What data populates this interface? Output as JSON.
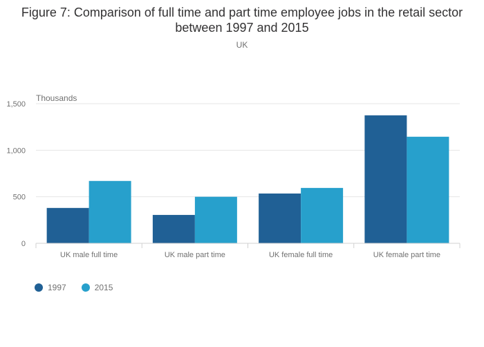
{
  "chart_data": {
    "type": "bar",
    "title": "Figure 7: Comparison of full time and part time employee jobs in the retail sector between 1997 and 2015",
    "subtitle": "UK",
    "ylabel": "Thousands",
    "xlabel": "",
    "categories": [
      "UK male full time",
      "UK male part time",
      "UK female full time",
      "UK female part time"
    ],
    "series": [
      {
        "name": "1997",
        "color": "#206095",
        "values": [
          380,
          305,
          535,
          1375
        ]
      },
      {
        "name": "2015",
        "color": "#27a0cc",
        "values": [
          670,
          500,
          595,
          1145
        ]
      }
    ],
    "ylim": [
      0,
      1500
    ],
    "yticks": [
      0,
      500,
      1000,
      1500
    ],
    "ytick_labels": [
      "0",
      "500",
      "1,000",
      "1,500"
    ],
    "grid": true,
    "legend_position": "bottom-left"
  }
}
